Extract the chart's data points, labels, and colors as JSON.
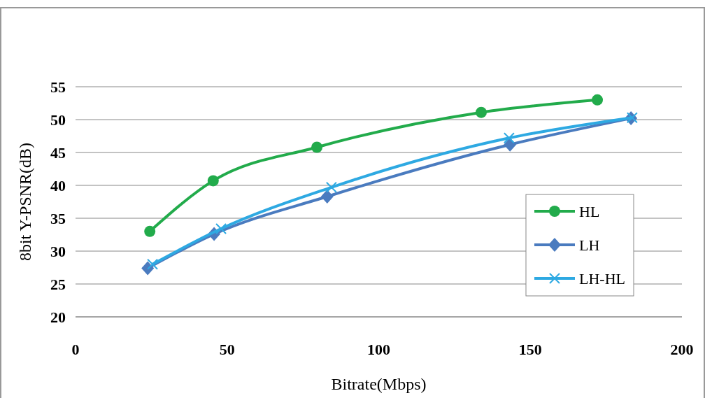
{
  "chart_data": {
    "type": "line",
    "xlabel": "Bitrate(Mbps)",
    "ylabel": "8bit Y-PSNR(dB)",
    "xlim": [
      0,
      200
    ],
    "xticks": [
      0,
      50,
      100,
      150,
      200
    ],
    "ylim": [
      20,
      55
    ],
    "yticks": [
      20,
      25,
      30,
      35,
      40,
      45,
      50,
      55
    ],
    "grid": "y",
    "legend": "right",
    "series": [
      {
        "name": "HL",
        "color": "#22ab4b",
        "marker": "circle",
        "x": [
          24.5,
          45.4,
          79.6,
          133.8,
          172.1
        ],
        "values": [
          33.0,
          40.7,
          45.8,
          51.1,
          53.0
        ]
      },
      {
        "name": "LH",
        "color": "#4a7bbf",
        "marker": "diamond",
        "x": [
          23.8,
          45.7,
          83.0,
          143.3,
          183.2
        ],
        "values": [
          27.4,
          32.6,
          38.3,
          46.2,
          50.2
        ]
      },
      {
        "name": "LH-HL",
        "color": "#2ea9e2",
        "marker": "cross",
        "x": [
          25.4,
          48.0,
          84.4,
          143.0,
          183.6
        ],
        "values": [
          28.0,
          33.4,
          39.7,
          47.2,
          50.3
        ]
      }
    ]
  }
}
